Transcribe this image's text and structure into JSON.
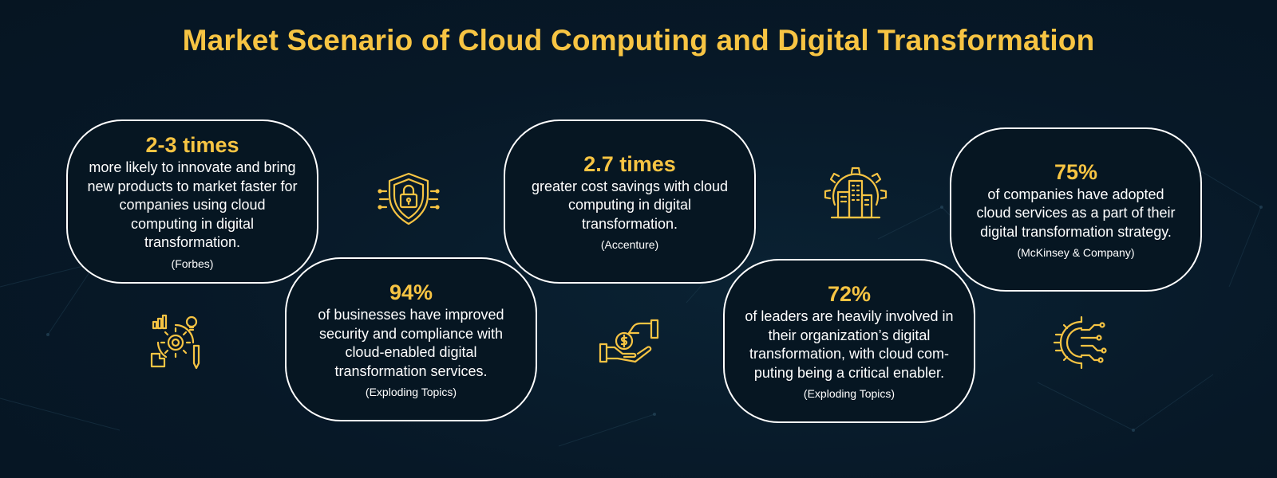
{
  "title": "Market Scenario of Cloud Computing and Digital Transformation",
  "colors": {
    "accent": "#f7c443",
    "background": "#071827",
    "text": "#ffffff"
  },
  "cards": [
    {
      "stat": "2-3 times",
      "desc": "more likely to innovate and bring new products to market faster for companies using cloud computing in digital transformation.",
      "source": "(Forbes)"
    },
    {
      "stat": "94%",
      "desc": "of businesses have improved security and compliance with cloud-enabled digital transformation services.",
      "source": "(Exploding Topics)"
    },
    {
      "stat": "2.7 times",
      "desc": "greater cost savings with cloud computing in digital transformation.",
      "source": "(Accenture)"
    },
    {
      "stat": "72%",
      "desc": "of leaders are heavily involved in their organization’s digital transformation, with cloud com-puting being a critical enabler.",
      "source": "(Exploding Topics)"
    },
    {
      "stat": "75%",
      "desc": "of companies have adopted cloud services as a part of their digital transformation strategy.",
      "source": "(McKinsey & Company)"
    }
  ],
  "icons": [
    "innovation-gear-icon",
    "security-shield-lock-icon",
    "money-hand-icon",
    "smart-building-gear-icon",
    "circuit-gear-icon"
  ]
}
